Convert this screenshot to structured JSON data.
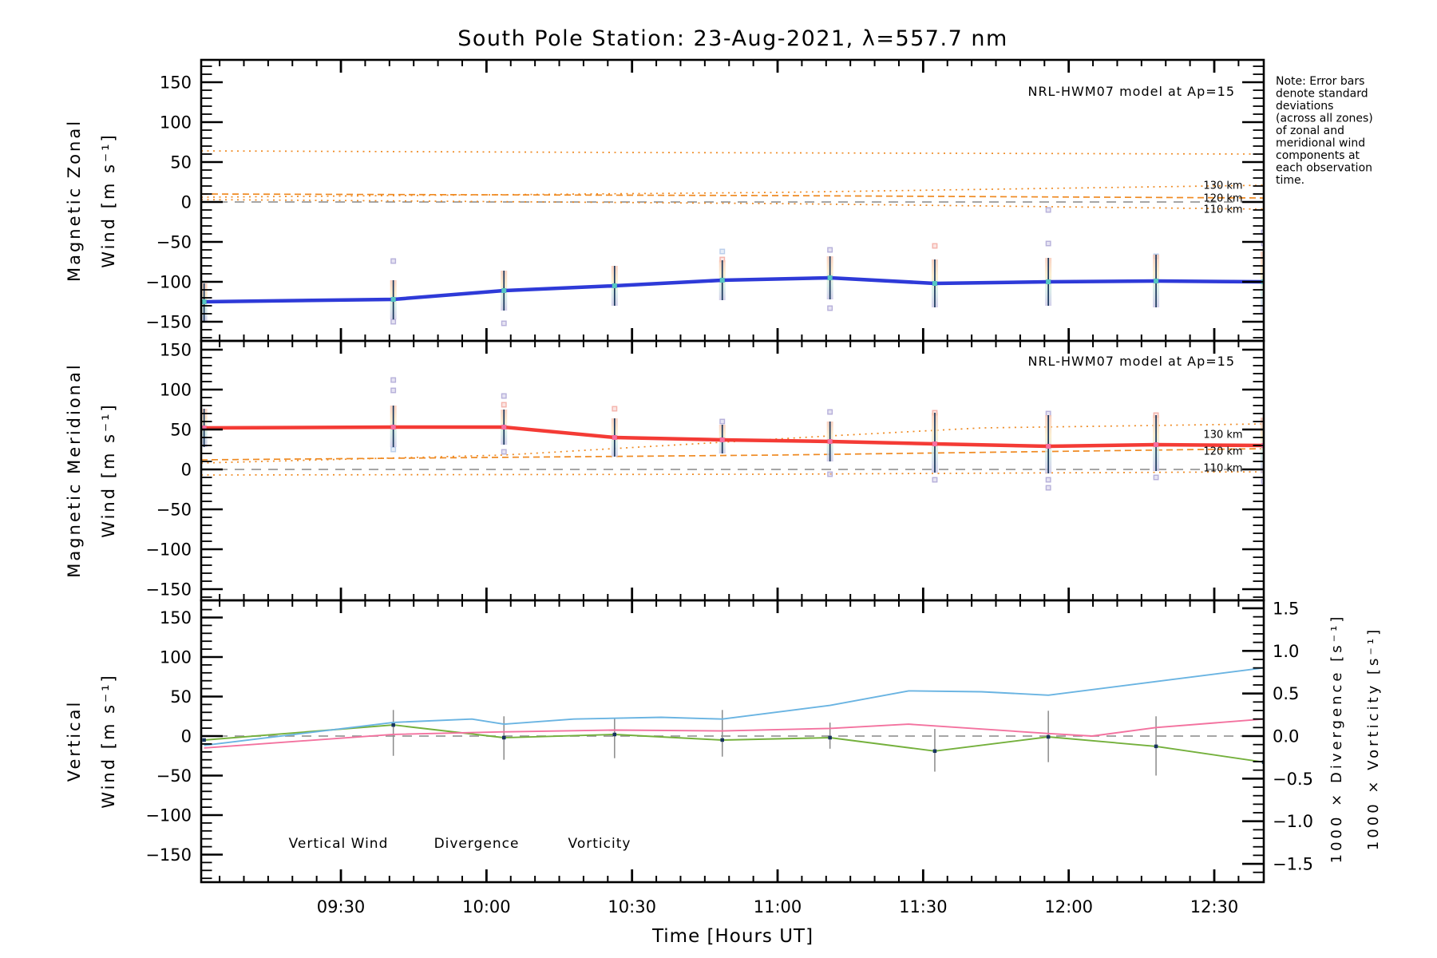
{
  "title": "South Pole Station: 23-Aug-2021, λ=557.7 nm",
  "x_axis": {
    "label": "Time [Hours UT]",
    "tick_labels": [
      "09:30",
      "10:00",
      "10:30",
      "11:00",
      "11:30",
      "12:00",
      "12:30"
    ],
    "tick_hours": [
      9.5,
      10,
      10.5,
      11,
      11.5,
      12,
      12.5
    ],
    "range_hours": [
      9.02,
      12.67
    ],
    "minor_step_minutes": 5
  },
  "note_lines": [
    "Note: Error bars",
    "denote standard",
    "deviations",
    "(across all zones)",
    "of zonal and",
    "meridional wind",
    "components at",
    "each observation",
    "time."
  ],
  "colors": {
    "zonal": "#2e3ad8",
    "meridional": "#f43b35",
    "vertical_wind": "#74b03c",
    "divergence": "#6ab4e2",
    "vorticity": "#f3729f",
    "model": "#ef8a22",
    "zero_line": "#9a9a9a",
    "error_bar": "#1c3a5e",
    "error_bar_gray": "#8a8a8a",
    "marker_zonal": "#57c6c2",
    "marker_meridional": "#f56fa0",
    "marker_vertical": "#17335f",
    "outlier_lavender": "#b6b0da",
    "outlier_pink": "#f4b3ab",
    "outlier_blue": "#b9cdea",
    "band_top": "#f7c6b4",
    "band_mid": "#fae9c4",
    "band_low": "#cfe9e3",
    "band_bot": "#c9c4e6",
    "axis": "#000000"
  },
  "panels": [
    {
      "name": "magnetic-zonal",
      "ylabel_line1": "Magnetic Zonal",
      "ylabel_line2": "Wind [m s⁻¹]",
      "annotation": "NRL-HWM07 model at Ap=15",
      "y_tick_labels": [
        "150",
        "100",
        "50",
        "0",
        "−50",
        "−100",
        "−150"
      ],
      "y_tick_values": [
        150,
        100,
        50,
        0,
        -50,
        -100,
        -150
      ]
    },
    {
      "name": "magnetic-meridional",
      "ylabel_line1": "Magnetic Meridional",
      "ylabel_line2": "Wind [m s⁻¹]",
      "annotation": "NRL-HWM07 model at Ap=15",
      "y_tick_labels": [
        "150",
        "100",
        "50",
        "0",
        "−50",
        "−100",
        "−150"
      ],
      "y_tick_values": [
        150,
        100,
        50,
        0,
        -50,
        -100,
        -150
      ]
    },
    {
      "name": "vertical-wind-divergence-vorticity",
      "ylabel_line1": "Vertical",
      "ylabel_line2": "Wind [m s⁻¹]",
      "y_tick_labels": [
        "150",
        "100",
        "50",
        "0",
        "−50",
        "−100",
        "−150"
      ],
      "y_tick_values": [
        150,
        100,
        50,
        0,
        -50,
        -100,
        -150
      ],
      "legend": [
        {
          "label": "Vertical Wind",
          "color_key": "vertical_wind"
        },
        {
          "label": "Divergence",
          "color_key": "divergence"
        },
        {
          "label": "Vorticity",
          "color_key": "vorticity"
        }
      ],
      "right_axis": {
        "tick_labels": [
          "1.5",
          "1.0",
          "0.5",
          "0.0",
          "−0.5",
          "−1.0",
          "−1.5"
        ],
        "tick_values": [
          1.5,
          1.0,
          0.5,
          0.0,
          -0.5,
          -1.0,
          -1.5
        ],
        "title_divergence": "1000 × Divergence [s⁻¹]",
        "title_vorticity": "1000 × Vorticity [s⁻¹]"
      }
    }
  ],
  "chart_data": [
    {
      "type": "line",
      "panel_index": 0,
      "title": "Magnetic Zonal Wind vs Time",
      "ylim": [
        -174,
        178
      ],
      "x_hours": [
        9.03,
        9.68,
        10.06,
        10.44,
        10.81,
        11.18,
        11.54,
        11.93,
        12.3,
        12.67
      ],
      "series": [
        {
          "name": "magnetic_zonal_wind",
          "color_key": "zonal",
          "marker_color_key": "marker_zonal",
          "values": [
            -125,
            -122,
            -111,
            -105,
            -98,
            -95,
            -102,
            -100,
            -99,
            -100
          ],
          "err_lo": [
            -150,
            -147,
            -136,
            -130,
            -123,
            -122,
            -132,
            -130,
            -132,
            -140
          ],
          "err_hi": [
            -102,
            -98,
            -86,
            -80,
            -73,
            -68,
            -72,
            -70,
            -66,
            -62
          ]
        }
      ],
      "model_lines": [
        {
          "label": "",
          "style": "dot",
          "pts": [
            [
              9.02,
              64
            ],
            [
              10.5,
              62
            ],
            [
              12.67,
              60
            ]
          ],
          "label_value": null
        },
        {
          "label": "130 km",
          "style": "dot",
          "pts": [
            [
              9.02,
              6
            ],
            [
              11.0,
              12
            ],
            [
              12.67,
              21
            ]
          ],
          "label_value": 21
        },
        {
          "label": "120 km",
          "style": "dash",
          "pts": [
            [
              9.02,
              10
            ],
            [
              11.0,
              8
            ],
            [
              12.67,
              5
            ]
          ],
          "label_value": 5
        },
        {
          "label": "110 km",
          "style": "dot",
          "pts": [
            [
              9.02,
              3
            ],
            [
              11.0,
              -2
            ],
            [
              12.67,
              -9
            ]
          ],
          "label_value": -9
        }
      ],
      "outliers": [
        {
          "h": 9.68,
          "v": -74,
          "c": 0
        },
        {
          "h": 9.68,
          "v": -150,
          "c": 0
        },
        {
          "h": 10.06,
          "v": -152,
          "c": 0
        },
        {
          "h": 10.81,
          "v": -62,
          "c": 2
        },
        {
          "h": 10.81,
          "v": -72,
          "c": 1
        },
        {
          "h": 11.18,
          "v": -60,
          "c": 0
        },
        {
          "h": 11.18,
          "v": -133,
          "c": 0
        },
        {
          "h": 11.54,
          "v": -55,
          "c": 1
        },
        {
          "h": 11.93,
          "v": -10,
          "c": 0
        },
        {
          "h": 11.93,
          "v": -52,
          "c": 0
        },
        {
          "h": 12.3,
          "v": -68,
          "c": 2
        },
        {
          "h": 12.67,
          "v": -38,
          "c": 0
        },
        {
          "h": 12.67,
          "v": -52,
          "c": 0
        }
      ]
    },
    {
      "type": "line",
      "panel_index": 1,
      "title": "Magnetic Meridional Wind vs Time",
      "ylim": [
        -164,
        161
      ],
      "x_hours": [
        9.03,
        9.68,
        10.06,
        10.44,
        10.81,
        11.18,
        11.54,
        11.93,
        12.3,
        12.67
      ],
      "series": [
        {
          "name": "magnetic_meridional_wind",
          "color_key": "meridional",
          "marker_color_key": "marker_meridional",
          "values": [
            52,
            53,
            53,
            40,
            37,
            35,
            32,
            29,
            31,
            30
          ],
          "err_lo": [
            28,
            28,
            31,
            16,
            20,
            10,
            -4,
            -5,
            -2,
            -5
          ],
          "err_hi": [
            76,
            80,
            75,
            64,
            56,
            60,
            71,
            68,
            68,
            65
          ]
        }
      ],
      "model_lines": [
        {
          "label": "130 km",
          "style": "dot",
          "pts": [
            [
              9.02,
              8
            ],
            [
              10.06,
              18
            ],
            [
              11.18,
              42
            ],
            [
              11.7,
              52
            ],
            [
              12.67,
              57
            ]
          ],
          "label_value": 44
        },
        {
          "label": "120 km",
          "style": "dash",
          "pts": [
            [
              9.02,
              12
            ],
            [
              11.0,
              18
            ],
            [
              12.67,
              26
            ]
          ],
          "label_value": 23
        },
        {
          "label": "110 km",
          "style": "dot",
          "pts": [
            [
              9.02,
              -7
            ],
            [
              11.0,
              -6
            ],
            [
              12.67,
              -3
            ]
          ],
          "label_value": 2
        }
      ],
      "outliers": [
        {
          "h": 9.68,
          "v": 112,
          "c": 0
        },
        {
          "h": 9.68,
          "v": 99,
          "c": 0
        },
        {
          "h": 9.68,
          "v": 25,
          "c": 2
        },
        {
          "h": 10.06,
          "v": 92,
          "c": 0
        },
        {
          "h": 10.06,
          "v": 81,
          "c": 1
        },
        {
          "h": 10.06,
          "v": 22,
          "c": 0
        },
        {
          "h": 10.44,
          "v": 76,
          "c": 1
        },
        {
          "h": 10.81,
          "v": 60,
          "c": 0
        },
        {
          "h": 11.18,
          "v": 72,
          "c": 0
        },
        {
          "h": 11.18,
          "v": -6,
          "c": 0
        },
        {
          "h": 11.54,
          "v": 71,
          "c": 1
        },
        {
          "h": 11.54,
          "v": -13,
          "c": 0
        },
        {
          "h": 11.93,
          "v": 70,
          "c": 0
        },
        {
          "h": 11.93,
          "v": -13,
          "c": 0
        },
        {
          "h": 11.93,
          "v": -23,
          "c": 0
        },
        {
          "h": 12.3,
          "v": 68,
          "c": 1
        },
        {
          "h": 12.3,
          "v": -10,
          "c": 0
        },
        {
          "h": 12.67,
          "v": 60,
          "c": 0
        },
        {
          "h": 12.67,
          "v": -15,
          "c": 0
        }
      ]
    },
    {
      "type": "line",
      "panel_index": 2,
      "title": "Vertical Wind, Divergence, Vorticity vs Time",
      "ylim": [
        -184,
        170
      ],
      "right_ylim": [
        -1.7,
        1.6
      ],
      "x_hours": [
        9.03,
        9.68,
        10.06,
        10.44,
        10.81,
        11.18,
        11.54,
        11.93,
        12.3,
        12.67
      ],
      "series": [
        {
          "name": "vertical_wind",
          "color_key": "vertical_wind",
          "marker_color_key": "marker_vertical",
          "axis": "left",
          "values": [
            -5,
            14,
            -2,
            2,
            -5,
            -2,
            -19,
            -1,
            -13,
            -33
          ],
          "err_lo": [
            null,
            -25,
            -30,
            -28,
            -26,
            -16,
            -45,
            -33,
            -50,
            null
          ],
          "err_hi": [
            null,
            33,
            25,
            22,
            33,
            17,
            9,
            32,
            25,
            null
          ]
        },
        {
          "name": "divergence_x1000",
          "color_key": "divergence",
          "axis": "right",
          "points": [
            [
              9.03,
              -0.11
            ],
            [
              9.68,
              0.16
            ],
            [
              9.95,
              0.2
            ],
            [
              10.06,
              0.14
            ],
            [
              10.3,
              0.2
            ],
            [
              10.6,
              0.22
            ],
            [
              10.81,
              0.2
            ],
            [
              11.18,
              0.36
            ],
            [
              11.45,
              0.53
            ],
            [
              11.7,
              0.52
            ],
            [
              11.93,
              0.48
            ],
            [
              12.3,
              0.64
            ],
            [
              12.67,
              0.8
            ]
          ]
        },
        {
          "name": "vorticity_x1000",
          "color_key": "vorticity",
          "axis": "right",
          "points": [
            [
              9.03,
              -0.14
            ],
            [
              9.68,
              0.02
            ],
            [
              10.06,
              0.05
            ],
            [
              10.44,
              0.07
            ],
            [
              10.81,
              0.06
            ],
            [
              11.18,
              0.09
            ],
            [
              11.45,
              0.14
            ],
            [
              11.93,
              0.03
            ],
            [
              12.08,
              0.0
            ],
            [
              12.3,
              0.1
            ],
            [
              12.67,
              0.2
            ]
          ]
        }
      ],
      "model_lines": [],
      "outliers": []
    }
  ]
}
